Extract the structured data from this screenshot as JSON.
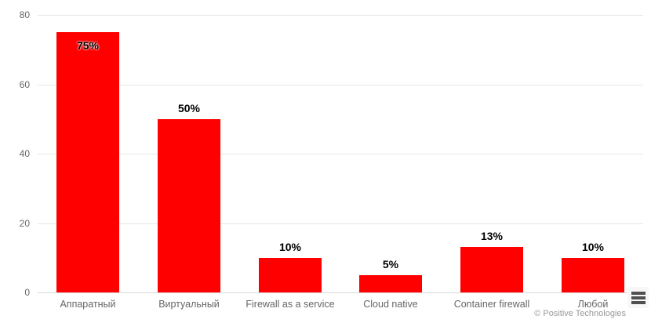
{
  "chart_data": {
    "type": "bar",
    "title": "",
    "xlabel": "",
    "ylabel": "",
    "categories": [
      "Аппаратный",
      "Виртуальный",
      "Firewall as a service",
      "Cloud native",
      "Container firewall",
      "Любой"
    ],
    "values": [
      75,
      50,
      10,
      5,
      13,
      10
    ],
    "data_labels": [
      "75%",
      "50%",
      "10%",
      "5%",
      "13%",
      "10%"
    ],
    "ylim": [
      0,
      80
    ],
    "yticks": [
      0,
      20,
      40,
      60,
      80
    ],
    "grid": true,
    "legend": "none",
    "bar_color": "#ff0000",
    "data_label_color": "#000000",
    "axis_text_color": "#666666",
    "gridline_color": "#e6e6e6",
    "axis_line_color": "#d8d8d8"
  },
  "credits": {
    "label": "© Positive Technologies"
  },
  "context_menu": {
    "name": "chart-context-menu"
  }
}
